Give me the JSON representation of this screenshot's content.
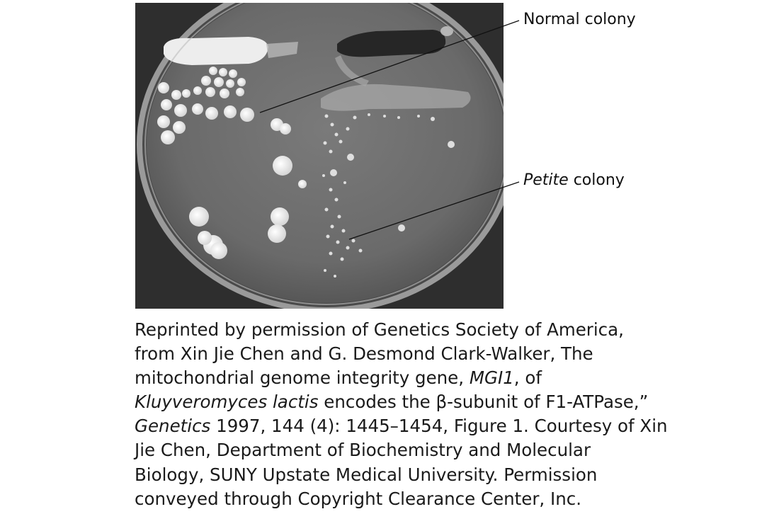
{
  "figure": {
    "callouts": {
      "normal": {
        "text": "Normal colony"
      },
      "petite": {
        "italic": "Petite",
        "text": " colony"
      }
    },
    "colors": {
      "plate_dark": "#3a3a3a",
      "plate_mid": "#6e6e6e",
      "colony": "#f2f2f2"
    }
  },
  "credit": {
    "l1": "Reprinted by permission of Genetics Society of America,",
    "l2": "from Xin Jie Chen and G. Desmond Clark-Walker, The",
    "l3a": "mitochondrial genome integrity gene, ",
    "l3b": "MGI1",
    "l3c": ", of",
    "l4a": "Kluyveromyces lactis",
    "l4b": " encodes the β-subunit of F1-ATPase,”",
    "l5a": "Genetics",
    "l5b": " 1997, 144 (4): 1445–1454, Figure 1. Courtesy of Xin",
    "l6": "Jie Chen, Department of Biochemistry and Molecular",
    "l7": "Biology, SUNY Upstate Medical University. Permission",
    "l8": "conveyed through Copyright Clearance Center, Inc."
  }
}
